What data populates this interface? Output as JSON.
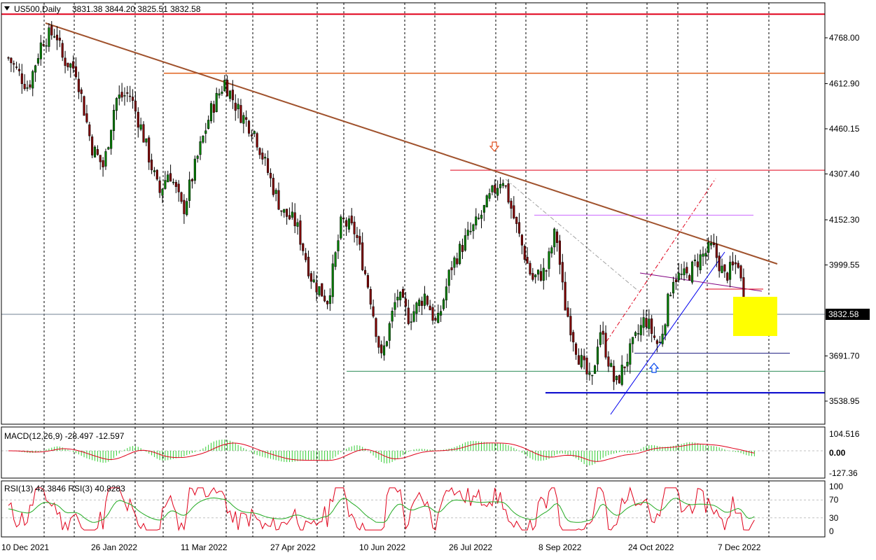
{
  "header": {
    "symbol_label": "US500,Daily",
    "ohlc": "3831.38 3844.20 3825.51 3832.58"
  },
  "chart_data": {
    "type": "candlestick",
    "symbol": "US500",
    "timeframe": "Daily",
    "price_axis": {
      "ticks": [
        4768.0,
        4612.9,
        4460.15,
        4307.4,
        4152.3,
        3999.55,
        3691.7,
        3538.95
      ],
      "tick_labels": [
        "4768.00",
        "4612.90",
        "4460.15",
        "4307.40",
        "4152.30",
        "3999.55",
        "3691.70",
        "3538.95"
      ],
      "current_price": 3832.58,
      "current_price_label": "3832.58",
      "range": [
        3480,
        4900
      ]
    },
    "date_axis": {
      "labels": [
        "10 Dec 2021",
        "26 Jan 2022",
        "11 Mar 2022",
        "27 Apr 2022",
        "10 Jun 2022",
        "26 Jul 2022",
        "8 Sep 2022",
        "24 Oct 2022",
        "7 Dec 2022"
      ],
      "first_date": "2021-12-10",
      "last_date": "2022-12-22"
    },
    "close_path": [
      [
        "2021-12-10",
        4700
      ],
      [
        "2021-12-20",
        4600
      ],
      [
        "2021-12-27",
        4760
      ],
      [
        "2022-01-03",
        4790
      ],
      [
        "2022-01-06",
        4700
      ],
      [
        "2022-01-13",
        4660
      ],
      [
        "2022-01-21",
        4400
      ],
      [
        "2022-01-27",
        4330
      ],
      [
        "2022-02-02",
        4560
      ],
      [
        "2022-02-09",
        4580
      ],
      [
        "2022-02-15",
        4460
      ],
      [
        "2022-02-24",
        4240
      ],
      [
        "2022-03-01",
        4320
      ],
      [
        "2022-03-08",
        4180
      ],
      [
        "2022-03-16",
        4380
      ],
      [
        "2022-03-22",
        4520
      ],
      [
        "2022-03-29",
        4620
      ],
      [
        "2022-04-05",
        4520
      ],
      [
        "2022-04-13",
        4450
      ],
      [
        "2022-04-22",
        4270
      ],
      [
        "2022-04-27",
        4180
      ],
      [
        "2022-05-04",
        4140
      ],
      [
        "2022-05-12",
        3950
      ],
      [
        "2022-05-20",
        3880
      ],
      [
        "2022-05-27",
        4150
      ],
      [
        "2022-06-03",
        4110
      ],
      [
        "2022-06-10",
        3910
      ],
      [
        "2022-06-16",
        3680
      ],
      [
        "2022-06-24",
        3900
      ],
      [
        "2022-06-30",
        3820
      ],
      [
        "2022-07-08",
        3900
      ],
      [
        "2022-07-14",
        3790
      ],
      [
        "2022-07-21",
        3990
      ],
      [
        "2022-07-28",
        4080
      ],
      [
        "2022-08-04",
        4150
      ],
      [
        "2022-08-10",
        4230
      ],
      [
        "2022-08-16",
        4300
      ],
      [
        "2022-08-23",
        4130
      ],
      [
        "2022-08-31",
        3950
      ],
      [
        "2022-09-07",
        3980
      ],
      [
        "2022-09-12",
        4120
      ],
      [
        "2022-09-16",
        3880
      ],
      [
        "2022-09-23",
        3700
      ],
      [
        "2022-09-30",
        3590
      ],
      [
        "2022-10-04",
        3790
      ],
      [
        "2022-10-12",
        3590
      ],
      [
        "2022-10-19",
        3700
      ],
      [
        "2022-10-27",
        3820
      ],
      [
        "2022-11-03",
        3720
      ],
      [
        "2022-11-10",
        3960
      ],
      [
        "2022-11-17",
        3960
      ],
      [
        "2022-11-23",
        4020
      ],
      [
        "2022-11-30",
        4060
      ],
      [
        "2022-12-06",
        3960
      ],
      [
        "2022-12-13",
        4010
      ],
      [
        "2022-12-16",
        3850
      ],
      [
        "2022-12-19",
        3820
      ],
      [
        "2022-12-22",
        3832.58
      ]
    ],
    "trendlines": {
      "red_horizontal_top": 4848,
      "orange_horizontal": 4648,
      "red_horizontal_mid": 4320,
      "violet_horizontal": 4168,
      "navy_horizontal_support": 3701,
      "blue_horizontal_bottom": 3567,
      "green_horizontal": 3640,
      "slate_horizontal": 3842
    },
    "macd": {
      "label": "MACD(12,26,9) -28.497 -12.597",
      "ticks": [
        "104.516",
        "0.00",
        "-127.36"
      ]
    },
    "rsi": {
      "label": "RSI(13) 42.3846  RSI(3) 40.8283",
      "ticks": [
        "100",
        "70",
        "30",
        "0"
      ]
    }
  }
}
